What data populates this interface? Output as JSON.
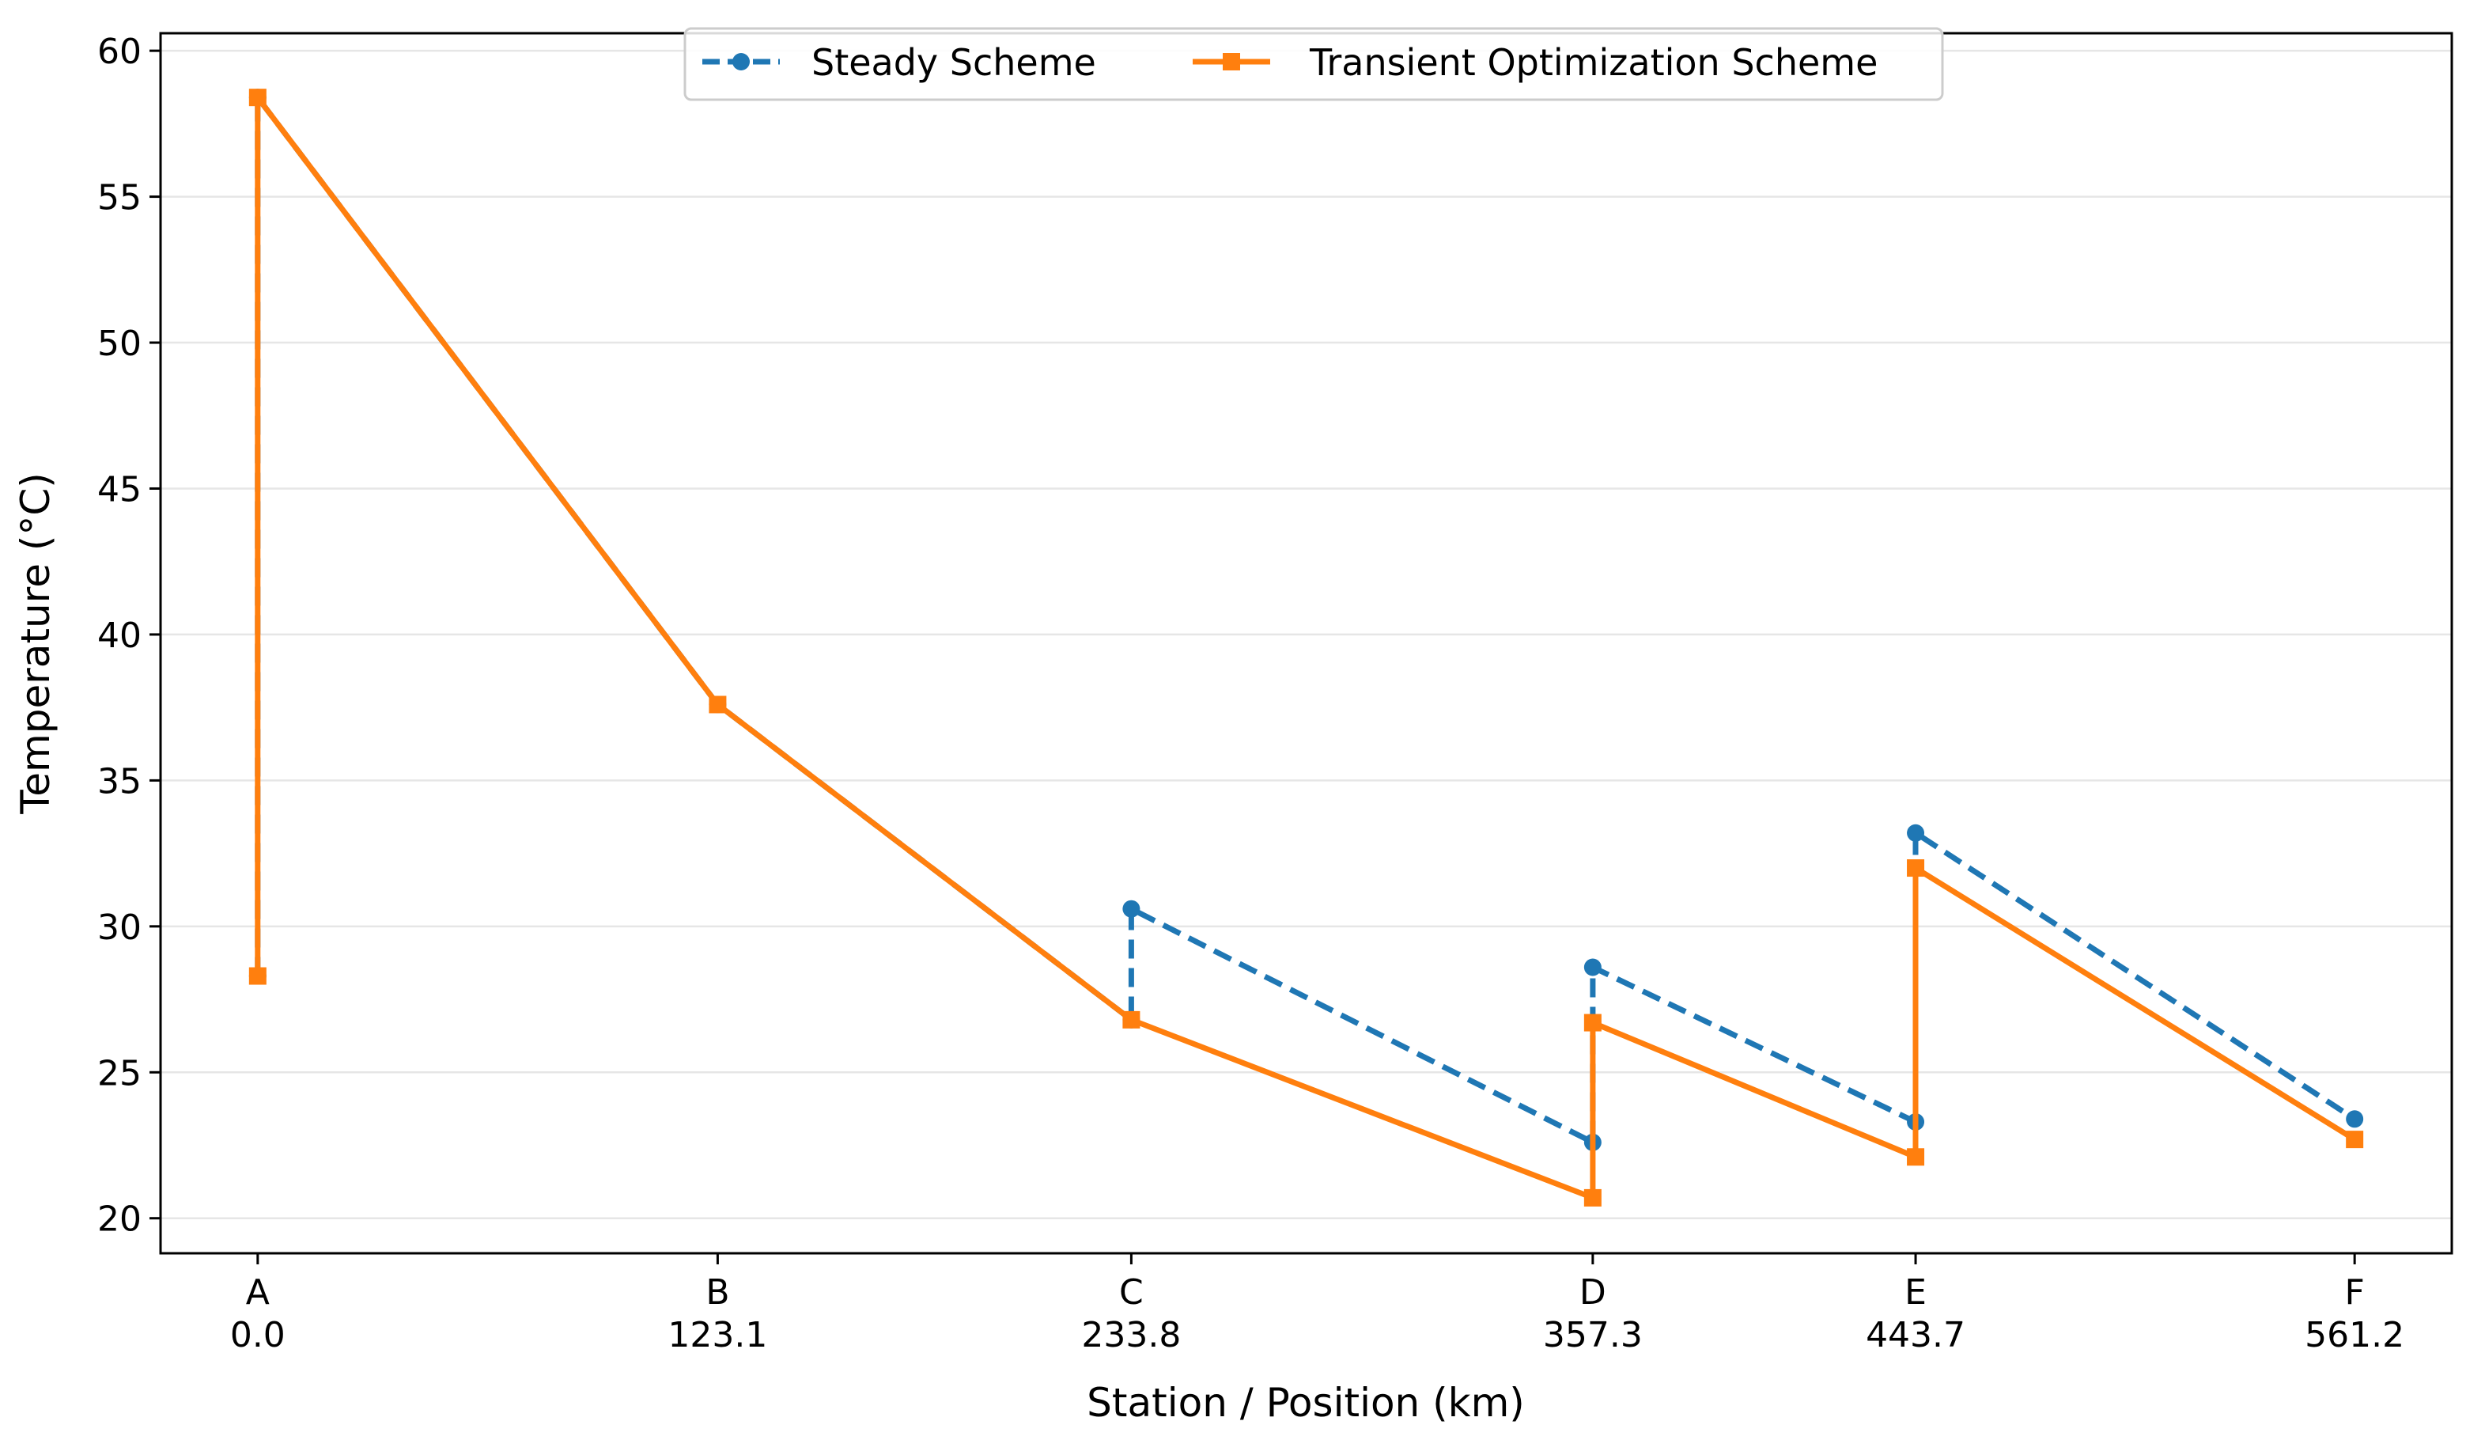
{
  "chart_data": {
    "type": "line",
    "xlabel": "Station / Position (km)",
    "ylabel": "Temperature (°C)",
    "xlim": [
      -26.0,
      587.2
    ],
    "ylim": [
      18.8,
      60.6
    ],
    "grid": "horizontal",
    "legend_position": "top-center",
    "y_ticks": [
      20,
      25,
      30,
      35,
      40,
      45,
      50,
      55,
      60
    ],
    "stations": [
      {
        "name": "A",
        "km": 0.0,
        "label": "0.0"
      },
      {
        "name": "B",
        "km": 123.1,
        "label": "123.1"
      },
      {
        "name": "C",
        "km": 233.8,
        "label": "233.8"
      },
      {
        "name": "D",
        "km": 357.3,
        "label": "357.3"
      },
      {
        "name": "E",
        "km": 443.7,
        "label": "443.7"
      },
      {
        "name": "F",
        "km": 561.2,
        "label": "561.2"
      }
    ],
    "series": [
      {
        "name": "Steady Scheme",
        "color": "#1f77b4",
        "style": "dashed",
        "marker": "circle",
        "points": [
          [
            0.0,
            28.3
          ],
          [
            0.0,
            58.4
          ],
          [
            123.1,
            37.6
          ],
          [
            233.8,
            26.8
          ],
          [
            233.8,
            30.6
          ],
          [
            357.3,
            22.6
          ],
          [
            357.3,
            28.6
          ],
          [
            443.7,
            23.3
          ],
          [
            443.7,
            33.2
          ],
          [
            561.2,
            23.4
          ]
        ]
      },
      {
        "name": "Transient Optimization Scheme",
        "color": "#ff7f0e",
        "style": "solid",
        "marker": "square",
        "points": [
          [
            0.0,
            28.3
          ],
          [
            0.0,
            58.4
          ],
          [
            123.1,
            37.6
          ],
          [
            233.8,
            26.8
          ],
          [
            357.3,
            20.7
          ],
          [
            357.3,
            26.7
          ],
          [
            443.7,
            22.1
          ],
          [
            443.7,
            32.0
          ],
          [
            561.2,
            22.7
          ]
        ]
      }
    ]
  }
}
